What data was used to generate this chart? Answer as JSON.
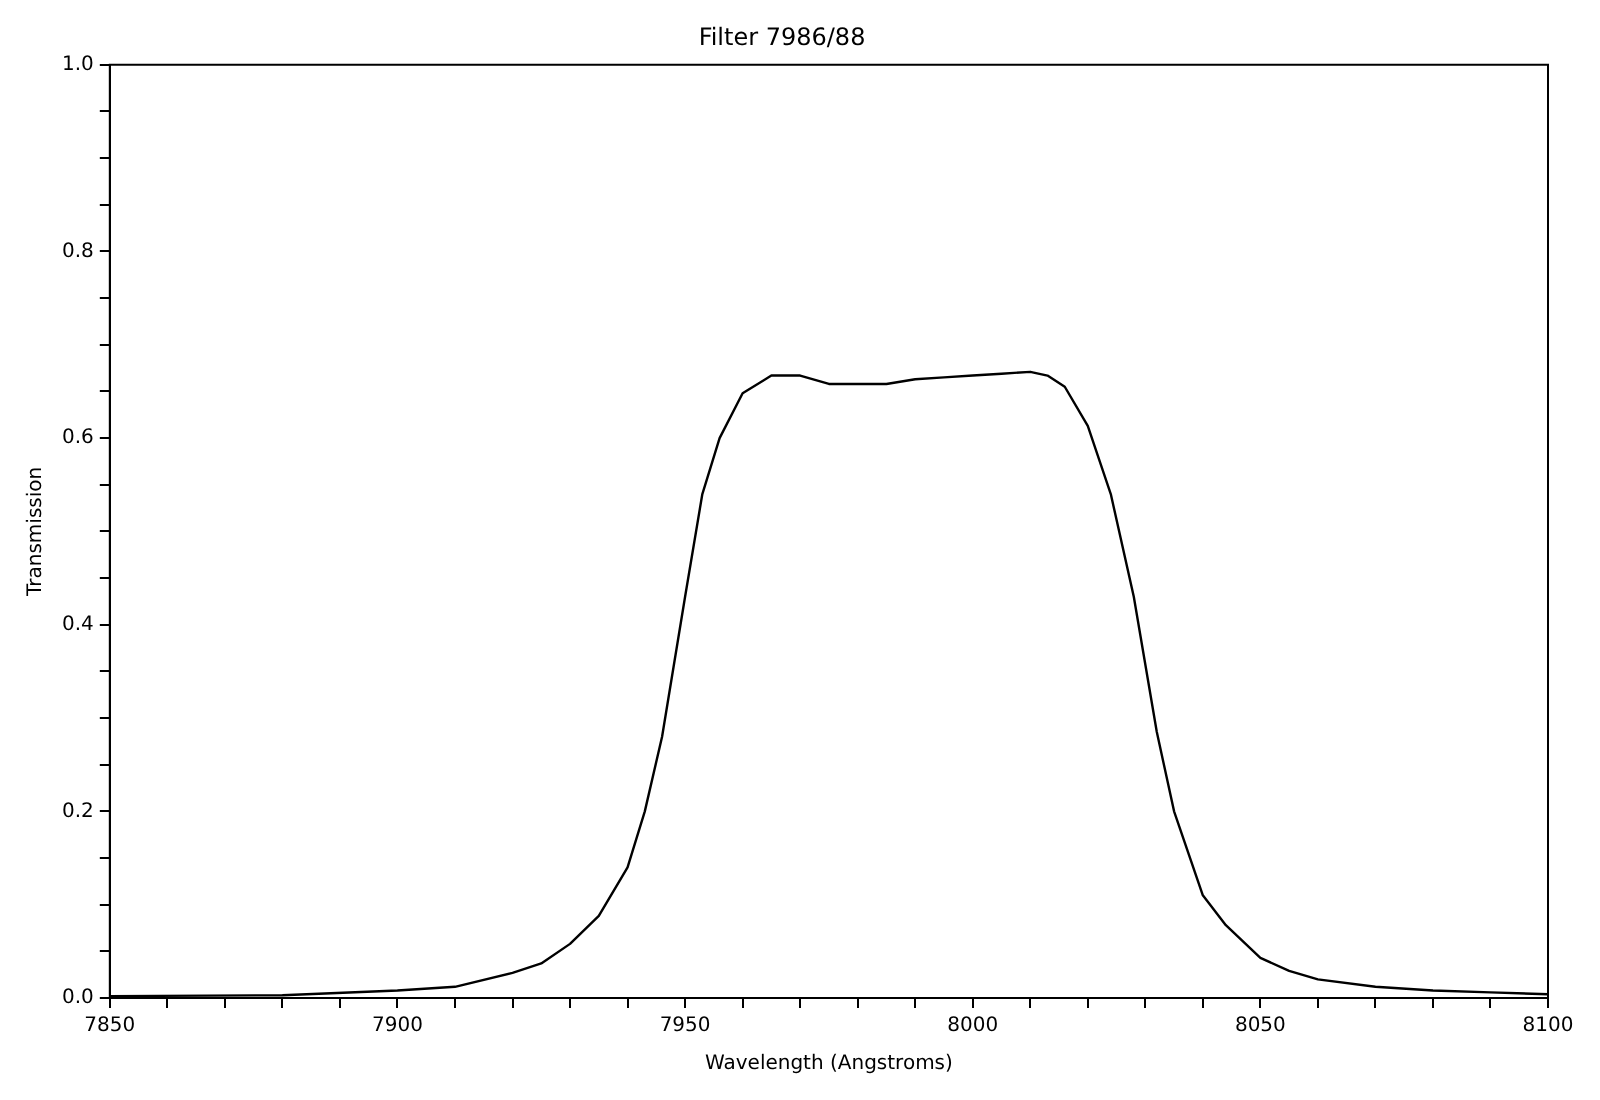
{
  "chart_data": {
    "type": "line",
    "title": "Filter 7986/88",
    "xlabel": "Wavelength (Angstroms)",
    "ylabel": "Transmission",
    "x": [
      7850,
      7880,
      7900,
      7910,
      7920,
      7925,
      7930,
      7935,
      7940,
      7943,
      7946,
      7950,
      7953,
      7956,
      7960,
      7965,
      7970,
      7975,
      7985,
      7990,
      7995,
      8000,
      8005,
      8010,
      8013,
      8016,
      8020,
      8024,
      8028,
      8032,
      8035,
      8040,
      8044,
      8050,
      8055,
      8060,
      8070,
      8080,
      8090,
      8100
    ],
    "series": [
      {
        "color": "#000000",
        "values": [
          0.002,
          0.003,
          0.008,
          0.012,
          0.027,
          0.037,
          0.058,
          0.088,
          0.14,
          0.2,
          0.28,
          0.43,
          0.54,
          0.6,
          0.648,
          0.667,
          0.667,
          0.658,
          0.658,
          0.663,
          0.665,
          0.667,
          0.669,
          0.671,
          0.667,
          0.655,
          0.613,
          0.54,
          0.43,
          0.285,
          0.2,
          0.11,
          0.078,
          0.043,
          0.029,
          0.02,
          0.012,
          0.008,
          0.006,
          0.004
        ]
      }
    ],
    "xlim": [
      7850,
      8100
    ],
    "xticks": [
      7850,
      {
        "value": 7860,
        "label": null
      },
      {
        "value": 7870,
        "label": null
      },
      {
        "value": 7880,
        "label": null
      },
      {
        "value": 7890,
        "label": null
      },
      7900,
      {
        "value": 7910,
        "label": null
      },
      {
        "value": 7920,
        "label": null
      },
      {
        "value": 7930,
        "label": null
      },
      {
        "value": 7940,
        "label": null
      },
      7950,
      {
        "value": 7960,
        "label": null
      },
      {
        "value": 7970,
        "label": null
      },
      {
        "value": 7980,
        "label": null
      },
      {
        "value": 7990,
        "label": null
      },
      8000,
      {
        "value": 8010,
        "label": null
      },
      {
        "value": 8020,
        "label": null
      },
      {
        "value": 8030,
        "label": null
      },
      {
        "value": 8040,
        "label": null
      },
      8050,
      {
        "value": 8060,
        "label": null
      },
      {
        "value": 8070,
        "label": null
      },
      {
        "value": 8080,
        "label": null
      },
      {
        "value": 8090,
        "label": null
      },
      8100
    ],
    "ylim": [
      0,
      1
    ],
    "yticks": [
      {
        "value": 0,
        "label": "0.0"
      },
      {
        "value": 0.05,
        "label": null
      },
      {
        "value": 0.1,
        "label": null
      },
      {
        "value": 0.15,
        "label": null
      },
      {
        "value": 0.2,
        "label": "0.2"
      },
      {
        "value": 0.25,
        "label": null
      },
      {
        "value": 0.3,
        "label": null
      },
      {
        "value": 0.35,
        "label": null
      },
      {
        "value": 0.4,
        "label": "0.4"
      },
      {
        "value": 0.45,
        "label": null
      },
      {
        "value": 0.5,
        "label": null
      },
      {
        "value": 0.55,
        "label": null
      },
      {
        "value": 0.6,
        "label": "0.6"
      },
      {
        "value": 0.65,
        "label": null
      },
      {
        "value": 0.7,
        "label": null
      },
      {
        "value": 0.75,
        "label": null
      },
      {
        "value": 0.8,
        "label": "0.8"
      },
      {
        "value": 0.85,
        "label": null
      },
      {
        "value": 0.9,
        "label": null
      },
      {
        "value": 0.95,
        "label": null
      },
      {
        "value": 1,
        "label": "1.0"
      }
    ],
    "grid": false,
    "legend": false,
    "marker": "none",
    "line_style": "solid"
  }
}
